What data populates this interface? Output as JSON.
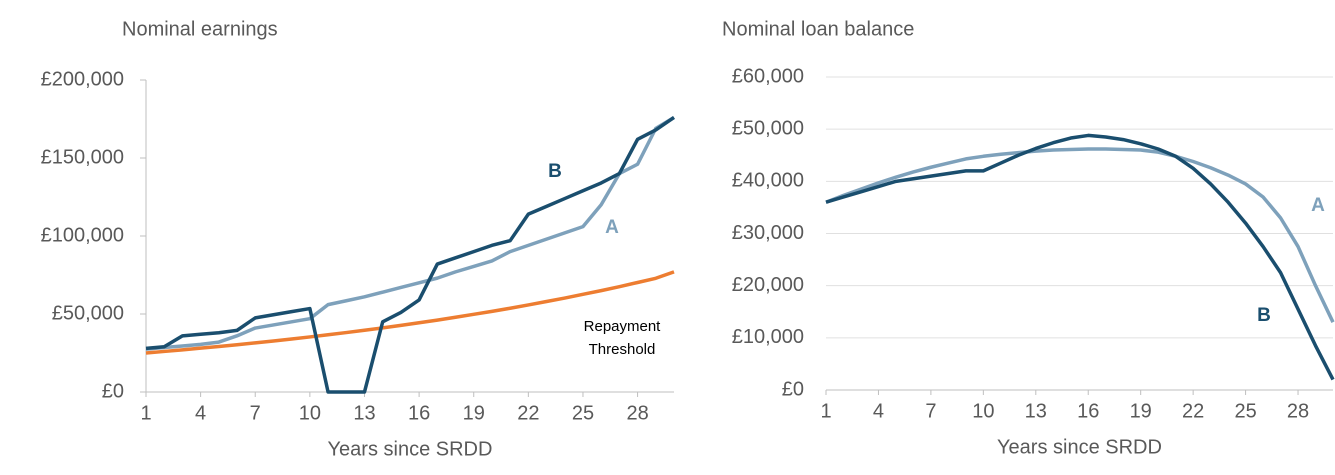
{
  "chart_data": [
    {
      "type": "line",
      "title": "Nominal earnings",
      "x_label": "Years since SRDD",
      "x": [
        1,
        2,
        3,
        4,
        5,
        6,
        7,
        8,
        9,
        10,
        11,
        12,
        13,
        14,
        15,
        16,
        17,
        18,
        19,
        20,
        21,
        22,
        23,
        24,
        25,
        26,
        27,
        28,
        29,
        30
      ],
      "xlim": [
        1,
        30
      ],
      "xticks": [
        1,
        4,
        7,
        10,
        13,
        16,
        19,
        22,
        25,
        28
      ],
      "ylim": [
        0,
        200000
      ],
      "yticks": [
        {
          "value": 0,
          "label": "£0"
        },
        {
          "value": 50000,
          "label": "£50,000"
        },
        {
          "value": 100000,
          "label": "£100,000"
        },
        {
          "value": 150000,
          "label": "£150,000"
        },
        {
          "value": 200000,
          "label": "£200,000"
        }
      ],
      "grid": false,
      "series": [
        {
          "name": "Repayment Threshold",
          "color": "#ed7d31",
          "values": [
            25000,
            26000,
            27000,
            28100,
            29200,
            30300,
            31500,
            32700,
            34000,
            35300,
            36700,
            38100,
            39600,
            41100,
            42700,
            44400,
            46100,
            47900,
            49800,
            51700,
            53700,
            55800,
            58000,
            60200,
            62600,
            65000,
            67500,
            70200,
            72900,
            77000
          ]
        },
        {
          "name": "A",
          "color": "#7ea1bb",
          "values": [
            27500,
            28500,
            29500,
            30500,
            32000,
            36000,
            41000,
            43000,
            45000,
            47000,
            56000,
            58500,
            61000,
            64000,
            67000,
            70000,
            73000,
            77000,
            80500,
            84000,
            90000,
            94000,
            98000,
            102000,
            106000,
            120000,
            140000,
            146000,
            169000,
            176000
          ]
        },
        {
          "name": "B",
          "color": "#1a4e6e",
          "values": [
            28000,
            29000,
            36000,
            37000,
            38000,
            39500,
            47500,
            49500,
            51500,
            53500,
            0,
            0,
            0,
            45000,
            51000,
            59000,
            82000,
            86000,
            90000,
            94000,
            97000,
            114000,
            119000,
            124000,
            129000,
            134000,
            140000,
            162000,
            168000,
            176000
          ]
        }
      ]
    },
    {
      "type": "line",
      "title": "Nominal loan balance",
      "x_label": "Years since SRDD",
      "x": [
        1,
        2,
        3,
        4,
        5,
        6,
        7,
        8,
        9,
        10,
        11,
        12,
        13,
        14,
        15,
        16,
        17,
        18,
        19,
        20,
        21,
        22,
        23,
        24,
        25,
        26,
        27,
        28,
        29,
        30
      ],
      "xlim": [
        1,
        30
      ],
      "xticks": [
        1,
        4,
        7,
        10,
        13,
        16,
        19,
        22,
        25,
        28
      ],
      "ylim": [
        0,
        60000
      ],
      "yticks": [
        {
          "value": 0,
          "label": "£0"
        },
        {
          "value": 10000,
          "label": "£10,000"
        },
        {
          "value": 20000,
          "label": "£20,000"
        },
        {
          "value": 30000,
          "label": "£30,000"
        },
        {
          "value": 40000,
          "label": "£40,000"
        },
        {
          "value": 50000,
          "label": "£50,000"
        },
        {
          "value": 60000,
          "label": "£60,000"
        }
      ],
      "grid": true,
      "series": [
        {
          "name": "A",
          "color": "#7ea1bb",
          "values": [
            36000,
            37300,
            38500,
            39700,
            40800,
            41800,
            42700,
            43500,
            44300,
            44800,
            45200,
            45500,
            45800,
            46000,
            46100,
            46200,
            46200,
            46100,
            46000,
            45600,
            44800,
            43800,
            42600,
            41200,
            39500,
            37000,
            33000,
            27500,
            20000,
            13000
          ]
        },
        {
          "name": "B",
          "color": "#1a4e6e",
          "values": [
            36000,
            37000,
            38000,
            39000,
            40000,
            40500,
            41000,
            41500,
            42000,
            42000,
            43500,
            45000,
            46300,
            47400,
            48300,
            48800,
            48500,
            48000,
            47200,
            46200,
            44800,
            42500,
            39500,
            36000,
            32000,
            27500,
            22500,
            15500,
            8500,
            2000
          ]
        }
      ]
    }
  ]
}
